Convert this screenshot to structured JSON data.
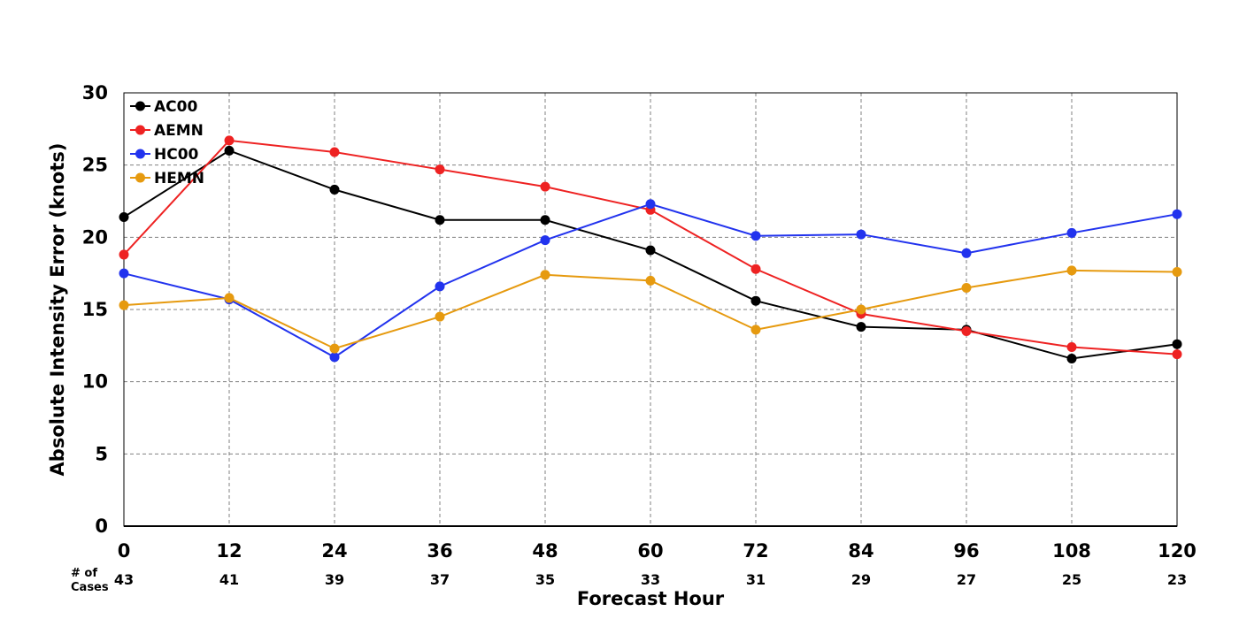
{
  "chart_data": {
    "type": "line",
    "title": "",
    "xlabel": "Forecast Hour",
    "ylabel": "Absolute Intensity Error (knots)",
    "x": [
      0,
      12,
      24,
      36,
      48,
      60,
      72,
      84,
      96,
      108,
      120
    ],
    "xlim": [
      0,
      120
    ],
    "ylim": [
      0,
      30
    ],
    "yticks": [
      0,
      5,
      10,
      15,
      20,
      25,
      30
    ],
    "grid": true,
    "legend_position": "top-left",
    "cases_label_line1": "# of",
    "cases_label_line2": "Cases",
    "cases": [
      43,
      41,
      39,
      37,
      35,
      33,
      31,
      29,
      27,
      25,
      23
    ],
    "series": [
      {
        "name": "AC00",
        "color": "#000000",
        "values": [
          21.4,
          26.0,
          23.3,
          21.2,
          21.2,
          19.1,
          15.6,
          13.8,
          13.6,
          11.6,
          12.6
        ]
      },
      {
        "name": "AEMN",
        "color": "#ee2222",
        "values": [
          18.8,
          26.7,
          25.9,
          24.7,
          23.5,
          21.9,
          17.8,
          14.7,
          13.5,
          12.4,
          11.9
        ]
      },
      {
        "name": "HC00",
        "color": "#2233ee",
        "values": [
          17.5,
          15.7,
          11.7,
          16.6,
          19.8,
          22.3,
          20.1,
          20.2,
          18.9,
          20.3,
          21.6
        ]
      },
      {
        "name": "HEMN",
        "color": "#e69a0f",
        "values": [
          15.3,
          15.8,
          12.3,
          14.5,
          17.4,
          17.0,
          13.6,
          15.0,
          16.5,
          17.7,
          17.6
        ]
      }
    ]
  }
}
